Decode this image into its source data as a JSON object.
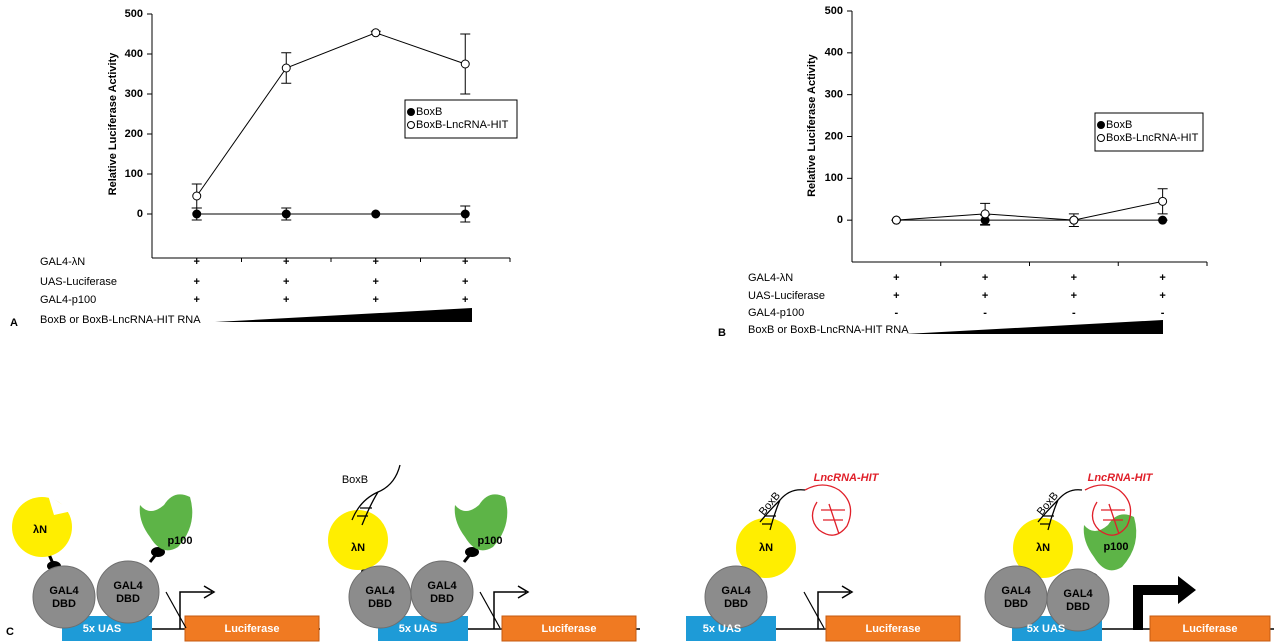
{
  "chart_data": [
    {
      "type": "line",
      "panel": "A",
      "ylabel": "Relative Luciferase Activity",
      "categories": [
        null,
        null,
        null,
        null
      ],
      "ylim": [
        -110,
        500
      ],
      "yticks": [
        0,
        100,
        200,
        300,
        400,
        500
      ],
      "series": [
        {
          "name": "BoxB",
          "color": "#000000",
          "marker_fill": "#000000",
          "values": [
            0,
            0,
            0,
            0
          ],
          "errors": [
            15,
            15,
            0,
            20
          ]
        },
        {
          "name": "BoxB-LncRNA-HIT",
          "color": "#000000",
          "marker_fill": "#ffffff",
          "values": [
            45,
            365,
            453,
            375
          ],
          "errors": [
            30,
            38,
            4,
            75
          ]
        }
      ],
      "conditions": [
        {
          "label": "GAL4-λN",
          "marks": [
            "+",
            "+",
            "+",
            "+"
          ]
        },
        {
          "label": "UAS-Luciferase",
          "marks": [
            "+",
            "+",
            "+",
            "+"
          ]
        },
        {
          "label": "GAL4-p100",
          "marks": [
            "+",
            "+",
            "+",
            "+"
          ]
        }
      ],
      "gradient_label": "BoxB or BoxB-LncRNA-HIT RNA"
    },
    {
      "type": "line",
      "panel": "B",
      "ylabel": "Relative Luciferase Activity",
      "categories": [
        null,
        null,
        null,
        null
      ],
      "ylim": [
        -100,
        500
      ],
      "yticks": [
        0,
        100,
        200,
        300,
        400,
        500
      ],
      "series": [
        {
          "name": "BoxB",
          "color": "#000000",
          "marker_fill": "#000000",
          "values": [
            0,
            0,
            0,
            0
          ],
          "errors": [
            0,
            12,
            0,
            0
          ]
        },
        {
          "name": "BoxB-LncRNA-HIT",
          "color": "#000000",
          "marker_fill": "#ffffff",
          "values": [
            0,
            15,
            0,
            45
          ],
          "errors": [
            0,
            25,
            15,
            30
          ]
        }
      ],
      "conditions": [
        {
          "label": "GAL4-λN",
          "marks": [
            "+",
            "+",
            "+",
            "+"
          ]
        },
        {
          "label": "UAS-Luciferase",
          "marks": [
            "+",
            "+",
            "+",
            "+"
          ]
        },
        {
          "label": "GAL4-p100",
          "marks": [
            "-",
            "-",
            "-",
            "-"
          ]
        }
      ],
      "gradient_label": "BoxB or BoxB-LncRNA-HIT RNA"
    }
  ],
  "panel_c": {
    "label": "C",
    "diagrams": [
      {
        "labels": [
          "λN",
          "GAL4",
          "DBD",
          "GAL4",
          "DBD",
          "p100",
          "5x UAS",
          "Luciferase"
        ]
      },
      {
        "labels": [
          "BoxB",
          "λN",
          "GAL4",
          "DBD",
          "GAL4",
          "DBD",
          "p100",
          "5x UAS",
          "Luciferase"
        ]
      },
      {
        "labels": [
          "BoxB",
          "LncRNA-HIT",
          "λN",
          "GAL4",
          "DBD",
          "5x UAS",
          "Luciferase"
        ]
      },
      {
        "labels": [
          "BoxB",
          "LncRNA-HIT",
          "λN",
          "p100",
          "GAL4",
          "DBD",
          "GAL4",
          "DBD",
          "5x UAS",
          "Luciferase"
        ]
      }
    ]
  }
}
